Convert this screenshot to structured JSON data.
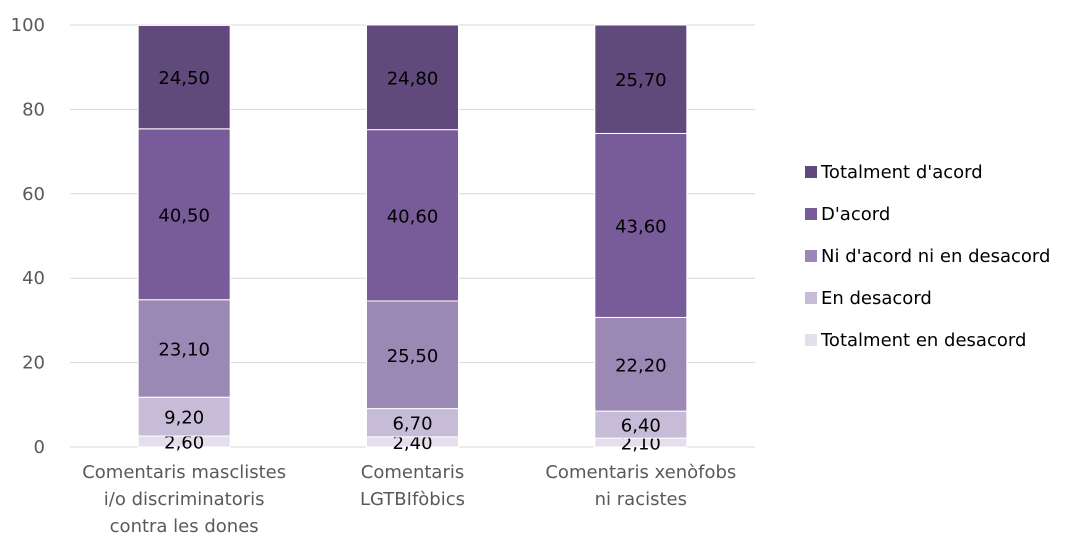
{
  "chart_data": {
    "type": "bar",
    "stacked": true,
    "categories": [
      [
        "Comentaris masclistes",
        "i/o discriminatoris",
        "contra les dones"
      ],
      [
        "Comentaris",
        "LGTBIfòbics"
      ],
      [
        "Comentaris xenòfobs",
        "ni racistes"
      ]
    ],
    "series": [
      {
        "name": "Totalment en desacord",
        "color": "#e4dfec",
        "values": [
          2.6,
          2.4,
          2.1
        ],
        "labels": [
          "2,60",
          "2,40",
          "2,10"
        ]
      },
      {
        "name": "En desacord",
        "color": "#c6bcd8",
        "values": [
          9.2,
          6.7,
          6.4
        ],
        "labels": [
          "9,20",
          "6,70",
          "6,40"
        ]
      },
      {
        "name": "Ni d'acord ni en desacord",
        "color": "#9b88b5",
        "values": [
          23.1,
          25.5,
          22.2
        ],
        "labels": [
          "23,10",
          "25,50",
          "22,20"
        ]
      },
      {
        "name": "D'acord",
        "color": "#775c99",
        "values": [
          40.5,
          40.6,
          43.6
        ],
        "labels": [
          "40,50",
          "40,60",
          "43,60"
        ]
      },
      {
        "name": "Totalment d'acord",
        "color": "#5f4a7b",
        "values": [
          24.5,
          24.8,
          25.7
        ],
        "labels": [
          "24,50",
          "24,80",
          "25,70"
        ]
      }
    ],
    "y_ticks": [
      "0",
      "20",
      "40",
      "60",
      "80",
      "100"
    ],
    "ylim": [
      0,
      100
    ],
    "legend_position": "right",
    "legend_order": [
      "Totalment d'acord",
      "D'acord",
      "Ni d'acord ni en desacord",
      "En desacord",
      "Totalment en desacord"
    ],
    "grid": true,
    "title": "",
    "xlabel": "",
    "ylabel": ""
  }
}
